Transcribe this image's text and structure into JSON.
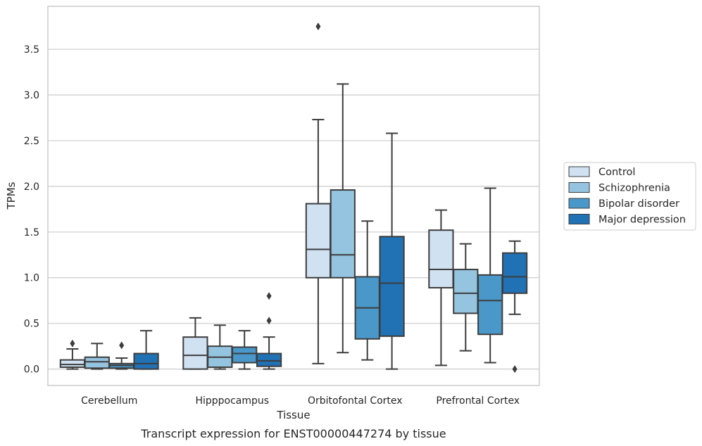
{
  "caption": "Transcript expression for ENST00000447274 by tissue",
  "colors": {
    "Control": "#d0e1f2",
    "Schizophrenia": "#94c4df",
    "Bipolar disorder": "#4a98c9",
    "Major depression": "#2171b5",
    "line": "#3d3d3d",
    "grid": "#cccccc",
    "frame": "#cccccc"
  },
  "chart_data": {
    "type": "box",
    "title": "",
    "xlabel": "Tissue",
    "ylabel": "TPMs",
    "ylim": [
      -0.18,
      3.97
    ],
    "yticks": [
      0.0,
      0.5,
      1.0,
      1.5,
      2.0,
      2.5,
      3.0,
      3.5
    ],
    "ytick_labels": [
      "0.0",
      "0.5",
      "1.0",
      "1.5",
      "2.0",
      "2.5",
      "3.0",
      "3.5"
    ],
    "grid": "horizontal",
    "legend_position": "right",
    "categories": [
      "Cerebellum",
      "Hipppocampus",
      "Orbitofontal Cortex",
      "Prefrontal Cortex"
    ],
    "series": [
      {
        "name": "Control",
        "boxes": [
          {
            "whislo": 0.0,
            "q1": 0.02,
            "med": 0.05,
            "q3": 0.1,
            "whishi": 0.22,
            "fliers": [
              0.28
            ]
          },
          {
            "whislo": 0.0,
            "q1": 0.0,
            "med": 0.15,
            "q3": 0.35,
            "whishi": 0.56,
            "fliers": []
          },
          {
            "whislo": 0.06,
            "q1": 1.0,
            "med": 1.31,
            "q3": 1.81,
            "whishi": 2.73,
            "fliers": [
              3.75
            ]
          },
          {
            "whislo": 0.04,
            "q1": 0.89,
            "med": 1.09,
            "q3": 1.52,
            "whishi": 1.74,
            "fliers": []
          }
        ]
      },
      {
        "name": "Schizophrenia",
        "boxes": [
          {
            "whislo": 0.0,
            "q1": 0.01,
            "med": 0.08,
            "q3": 0.13,
            "whishi": 0.28,
            "fliers": []
          },
          {
            "whislo": 0.0,
            "q1": 0.02,
            "med": 0.13,
            "q3": 0.25,
            "whishi": 0.48,
            "fliers": []
          },
          {
            "whislo": 0.18,
            "q1": 1.0,
            "med": 1.25,
            "q3": 1.96,
            "whishi": 3.12,
            "fliers": []
          },
          {
            "whislo": 0.2,
            "q1": 0.61,
            "med": 0.83,
            "q3": 1.09,
            "whishi": 1.37,
            "fliers": []
          }
        ]
      },
      {
        "name": "Bipolar disorder",
        "boxes": [
          {
            "whislo": 0.0,
            "q1": 0.01,
            "med": 0.04,
            "q3": 0.06,
            "whishi": 0.12,
            "fliers": [
              0.26
            ]
          },
          {
            "whislo": 0.0,
            "q1": 0.07,
            "med": 0.17,
            "q3": 0.24,
            "whishi": 0.42,
            "fliers": []
          },
          {
            "whislo": 0.1,
            "q1": 0.33,
            "med": 0.67,
            "q3": 1.01,
            "whishi": 1.62,
            "fliers": []
          },
          {
            "whislo": 0.07,
            "q1": 0.38,
            "med": 0.75,
            "q3": 1.03,
            "whishi": 1.98,
            "fliers": []
          }
        ]
      },
      {
        "name": "Major depression",
        "boxes": [
          {
            "whislo": 0.0,
            "q1": 0.0,
            "med": 0.06,
            "q3": 0.17,
            "whishi": 0.42,
            "fliers": []
          },
          {
            "whislo": 0.0,
            "q1": 0.03,
            "med": 0.09,
            "q3": 0.17,
            "whishi": 0.35,
            "fliers": [
              0.53,
              0.8
            ]
          },
          {
            "whislo": 0.0,
            "q1": 0.36,
            "med": 0.94,
            "q3": 1.45,
            "whishi": 2.58,
            "fliers": []
          },
          {
            "whislo": 0.6,
            "q1": 0.83,
            "med": 1.01,
            "q3": 1.27,
            "whishi": 1.4,
            "fliers": [
              0.0
            ]
          }
        ]
      }
    ]
  }
}
